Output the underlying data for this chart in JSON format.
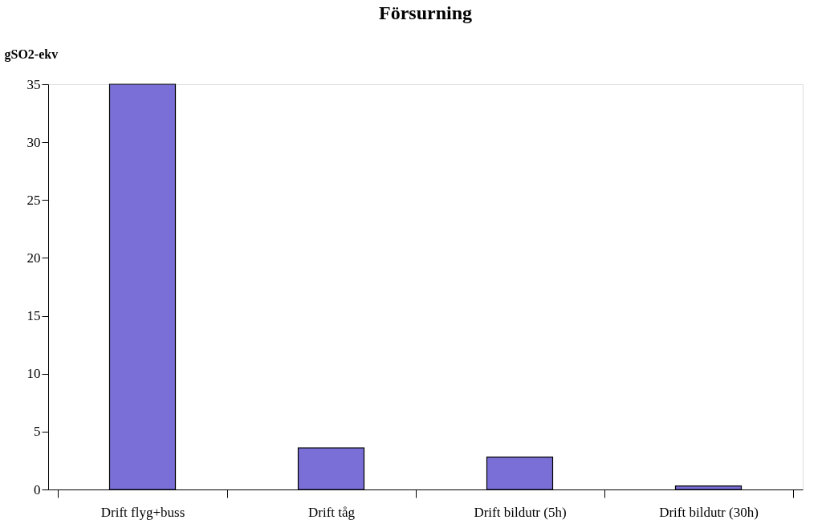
{
  "chart_data": {
    "type": "bar",
    "title": "Försurning",
    "ylabel": "gSO2-ekv",
    "categories": [
      "Drift flyg+buss",
      "Drift tåg",
      "Drift bildutr (5h)",
      "Drift bildutr (30h)"
    ],
    "values": [
      35,
      3.6,
      2.8,
      0.3
    ],
    "color": "#7a6fd6",
    "ylim": [
      0,
      35
    ],
    "yticks": [
      0,
      5,
      10,
      15,
      20,
      25,
      30,
      35
    ],
    "grid": false
  }
}
